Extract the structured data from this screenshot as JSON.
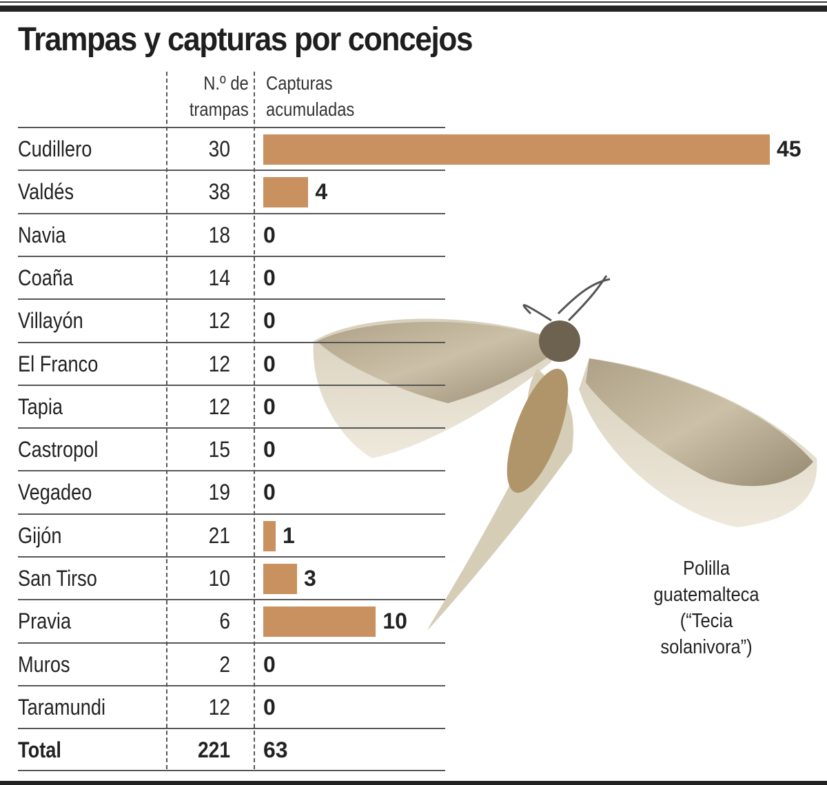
{
  "title": "Trampas y capturas por concejos",
  "headers": {
    "traps": [
      "N.º de",
      "trampas"
    ],
    "captures": [
      "Capturas",
      "acumuladas"
    ]
  },
  "rows": [
    {
      "name": "Cudillero",
      "traps": "30",
      "captures": "45"
    },
    {
      "name": "Valdés",
      "traps": "38",
      "captures": "4"
    },
    {
      "name": "Navia",
      "traps": "18",
      "captures": "0"
    },
    {
      "name": "Coaña",
      "traps": "14",
      "captures": "0"
    },
    {
      "name": "Villayón",
      "traps": "12",
      "captures": "0"
    },
    {
      "name": "El Franco",
      "traps": "12",
      "captures": "0"
    },
    {
      "name": "Tapia",
      "traps": "12",
      "captures": "0"
    },
    {
      "name": "Castropol",
      "traps": "15",
      "captures": "0"
    },
    {
      "name": "Vegadeo",
      "traps": "19",
      "captures": "0"
    },
    {
      "name": "Gijón",
      "traps": "21",
      "captures": "1"
    },
    {
      "name": "San Tirso",
      "traps": "10",
      "captures": "3"
    },
    {
      "name": "Pravia",
      "traps": "6",
      "captures": "10"
    },
    {
      "name": "Muros",
      "traps": "2",
      "captures": "0"
    },
    {
      "name": "Taramundi",
      "traps": "12",
      "captures": "0"
    }
  ],
  "total": {
    "label": "Total",
    "traps": "221",
    "captures": "63"
  },
  "caption": [
    "Polilla",
    "guatemalteca",
    "(“Tecia",
    "solanivora”)"
  ],
  "colors": {
    "bar": "#c8915f",
    "text": "#222222"
  },
  "chart_data": {
    "type": "bar",
    "title": "Trampas y capturas por concejos",
    "orientation": "horizontal",
    "categories": [
      "Cudillero",
      "Valdés",
      "Navia",
      "Coaña",
      "Villayón",
      "El Franco",
      "Tapia",
      "Castropol",
      "Vegadeo",
      "Gijón",
      "San Tirso",
      "Pravia",
      "Muros",
      "Taramundi"
    ],
    "series": [
      {
        "name": "Capturas acumuladas",
        "values": [
          45,
          4,
          0,
          0,
          0,
          0,
          0,
          0,
          0,
          1,
          3,
          10,
          0,
          0
        ]
      },
      {
        "name": "N.º de trampas",
        "values": [
          30,
          38,
          18,
          14,
          12,
          12,
          12,
          15,
          19,
          21,
          10,
          6,
          2,
          12
        ],
        "display": "table column"
      }
    ],
    "totals": {
      "trampas": 221,
      "capturas": 63
    },
    "xlabel": "",
    "ylabel": "",
    "annotations": [
      "Polilla guatemalteca (“Tecia solanivora”)"
    ]
  }
}
